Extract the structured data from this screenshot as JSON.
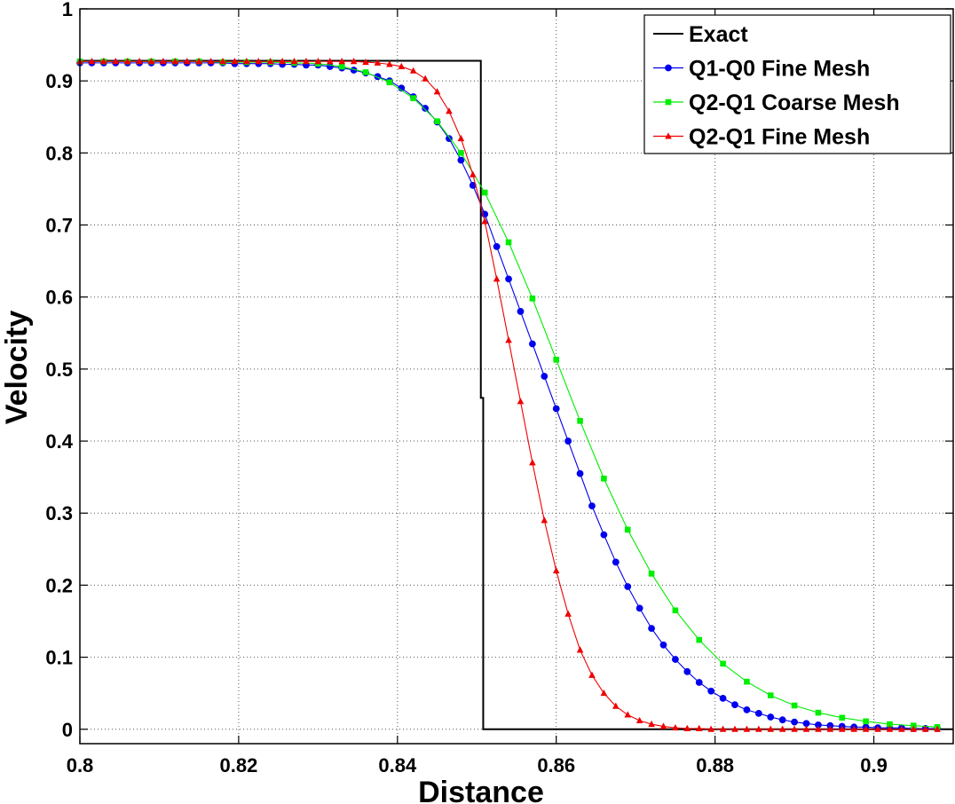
{
  "chart_data": {
    "type": "line",
    "title": "",
    "xlabel": "Distance",
    "ylabel": "Velocity",
    "xlim": [
      0.8,
      0.91
    ],
    "ylim": [
      -0.02,
      1.0
    ],
    "grid": true,
    "legend_position": "top-right",
    "x_ticks": [
      0.8,
      0.82,
      0.84,
      0.86,
      0.88,
      0.9
    ],
    "x_tick_labels": [
      "0.8",
      "0.82",
      "0.84",
      "0.86",
      "0.88",
      "0.9"
    ],
    "y_ticks": [
      0,
      0.1,
      0.2,
      0.3,
      0.4,
      0.5,
      0.6,
      0.7,
      0.8,
      0.9,
      1
    ],
    "y_tick_labels": [
      "0",
      "0.1",
      "0.2",
      "0.3",
      "0.4",
      "0.5",
      "0.6",
      "0.7",
      "0.8",
      "0.9",
      "1"
    ],
    "series": [
      {
        "name": "Exact",
        "color": "#000000",
        "marker": "none",
        "x": [
          0.8,
          0.8505,
          0.8505,
          0.8508,
          0.8508,
          0.91
        ],
        "y": [
          0.928,
          0.928,
          0.46,
          0.46,
          0.0,
          0.0
        ]
      },
      {
        "name": "Q1-Q0 Fine Mesh",
        "color": "#0000ee",
        "marker": "circle",
        "x": [
          0.8,
          0.8015,
          0.803,
          0.8045,
          0.806,
          0.8075,
          0.809,
          0.8105,
          0.812,
          0.8135,
          0.815,
          0.8165,
          0.818,
          0.8195,
          0.821,
          0.8225,
          0.824,
          0.8255,
          0.827,
          0.8285,
          0.83,
          0.8315,
          0.833,
          0.8345,
          0.836,
          0.8375,
          0.839,
          0.8405,
          0.842,
          0.8435,
          0.845,
          0.8465,
          0.848,
          0.8495,
          0.851,
          0.8525,
          0.854,
          0.8555,
          0.857,
          0.8585,
          0.86,
          0.8615,
          0.863,
          0.8645,
          0.866,
          0.8675,
          0.869,
          0.8705,
          0.872,
          0.8735,
          0.875,
          0.8765,
          0.878,
          0.8795,
          0.881,
          0.8825,
          0.884,
          0.8855,
          0.887,
          0.8885,
          0.89,
          0.8915,
          0.893,
          0.8945,
          0.896,
          0.8975,
          0.899,
          0.9005,
          0.902,
          0.9035,
          0.905,
          0.9065,
          0.908
        ],
        "y": [
          0.925,
          0.925,
          0.925,
          0.925,
          0.925,
          0.925,
          0.925,
          0.925,
          0.925,
          0.925,
          0.925,
          0.925,
          0.925,
          0.924,
          0.924,
          0.924,
          0.924,
          0.923,
          0.923,
          0.922,
          0.922,
          0.92,
          0.918,
          0.915,
          0.911,
          0.906,
          0.9,
          0.89,
          0.878,
          0.862,
          0.843,
          0.82,
          0.79,
          0.755,
          0.715,
          0.67,
          0.625,
          0.58,
          0.535,
          0.49,
          0.445,
          0.4,
          0.355,
          0.31,
          0.27,
          0.232,
          0.198,
          0.168,
          0.14,
          0.117,
          0.097,
          0.08,
          0.065,
          0.053,
          0.043,
          0.034,
          0.027,
          0.022,
          0.017,
          0.013,
          0.01,
          0.008,
          0.006,
          0.005,
          0.004,
          0.003,
          0.003,
          0.002,
          0.002,
          0.002,
          0.001,
          0.001,
          0.001
        ]
      },
      {
        "name": "Q2-Q1 Coarse Mesh",
        "color": "#00ee00",
        "marker": "square",
        "x": [
          0.8,
          0.803,
          0.806,
          0.809,
          0.812,
          0.815,
          0.818,
          0.821,
          0.824,
          0.827,
          0.83,
          0.833,
          0.836,
          0.839,
          0.842,
          0.845,
          0.848,
          0.851,
          0.854,
          0.857,
          0.86,
          0.863,
          0.866,
          0.869,
          0.872,
          0.875,
          0.878,
          0.881,
          0.884,
          0.887,
          0.89,
          0.893,
          0.896,
          0.899,
          0.902,
          0.905,
          0.908
        ],
        "y": [
          0.927,
          0.927,
          0.927,
          0.927,
          0.927,
          0.927,
          0.926,
          0.926,
          0.926,
          0.925,
          0.924,
          0.92,
          0.912,
          0.898,
          0.876,
          0.844,
          0.8,
          0.745,
          0.676,
          0.598,
          0.513,
          0.428,
          0.348,
          0.277,
          0.216,
          0.165,
          0.124,
          0.091,
          0.066,
          0.047,
          0.033,
          0.023,
          0.016,
          0.011,
          0.007,
          0.005,
          0.003
        ]
      },
      {
        "name": "Q2-Q1 Fine Mesh",
        "color": "#ee0000",
        "marker": "triangle",
        "x": [
          0.8,
          0.8015,
          0.803,
          0.8045,
          0.806,
          0.8075,
          0.809,
          0.8105,
          0.812,
          0.8135,
          0.815,
          0.8165,
          0.818,
          0.8195,
          0.821,
          0.8225,
          0.824,
          0.8255,
          0.827,
          0.8285,
          0.83,
          0.8315,
          0.833,
          0.8345,
          0.836,
          0.8375,
          0.839,
          0.8405,
          0.842,
          0.8435,
          0.845,
          0.8465,
          0.848,
          0.8495,
          0.851,
          0.8525,
          0.854,
          0.8555,
          0.857,
          0.8585,
          0.86,
          0.8615,
          0.863,
          0.8645,
          0.866,
          0.8675,
          0.869,
          0.8705,
          0.872,
          0.8735,
          0.875,
          0.8765,
          0.878,
          0.8795,
          0.881,
          0.8825,
          0.884,
          0.8855,
          0.887,
          0.8885,
          0.89,
          0.8915,
          0.893,
          0.8945,
          0.896,
          0.8975,
          0.899,
          0.9005,
          0.902,
          0.9035,
          0.905,
          0.9065,
          0.908
        ],
        "y": [
          0.927,
          0.927,
          0.927,
          0.927,
          0.927,
          0.927,
          0.927,
          0.927,
          0.927,
          0.927,
          0.927,
          0.927,
          0.927,
          0.927,
          0.927,
          0.927,
          0.927,
          0.927,
          0.927,
          0.927,
          0.927,
          0.927,
          0.927,
          0.927,
          0.926,
          0.925,
          0.923,
          0.92,
          0.914,
          0.903,
          0.885,
          0.858,
          0.82,
          0.77,
          0.705,
          0.625,
          0.54,
          0.455,
          0.37,
          0.29,
          0.22,
          0.16,
          0.11,
          0.075,
          0.05,
          0.032,
          0.02,
          0.012,
          0.007,
          0.004,
          0.002,
          0.001,
          0.001,
          0.0,
          0.0,
          0.0,
          0.0,
          0.0,
          0.0,
          0.0,
          0.0,
          0.0,
          0.0,
          0.0,
          0.0,
          0.0,
          0.0,
          0.0,
          0.0,
          0.0,
          0.0,
          0.0,
          0.0
        ]
      }
    ]
  }
}
